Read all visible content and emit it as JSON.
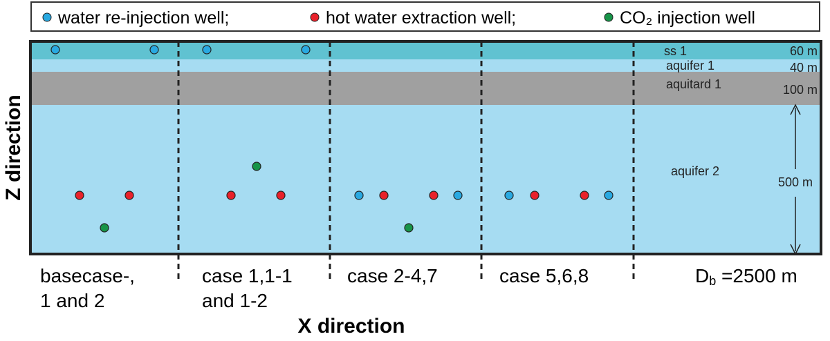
{
  "legend": {
    "items": [
      {
        "label": "water re-injection well;"
      },
      {
        "label": "hot water extraction well;"
      },
      {
        "label": "CO₂ injection well"
      }
    ]
  },
  "layers": [
    {
      "name": "ss 1",
      "thickness": "60 m"
    },
    {
      "name": "aquifer 1",
      "thickness": "40 m"
    },
    {
      "name": "aquitard 1",
      "thickness": "100 m"
    },
    {
      "name": "aquifer 2",
      "thickness": "500 m"
    }
  ],
  "cases": [
    {
      "lines": [
        "basecase-,",
        "1 and 2"
      ]
    },
    {
      "lines": [
        "case 1,1-1",
        "and 1-2"
      ]
    },
    {
      "lines": [
        "case 2-4,7"
      ]
    },
    {
      "lines": [
        "case 5,6,8"
      ]
    }
  ],
  "domain_length": {
    "symbol": "D",
    "subscript": "b",
    "value": " =2500 m"
  },
  "axes": {
    "x": "X direction",
    "z": "Z direction"
  }
}
